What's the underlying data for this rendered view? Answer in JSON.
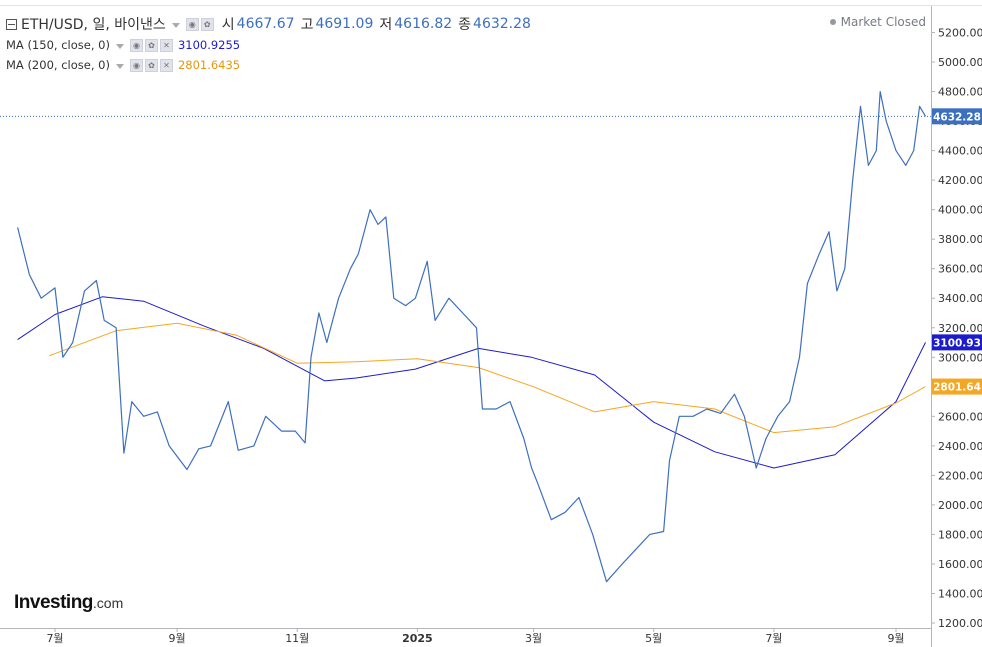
{
  "header": {
    "symbol": "ETH/USD, 일, 바이낸스",
    "open_label": "시",
    "open": "4667.67",
    "high_label": "고",
    "high": "4691.09",
    "low_label": "저",
    "low": "4616.82",
    "close_label": "종",
    "close": "4632.28",
    "status": "Market Closed"
  },
  "indicators": [
    {
      "label": "MA (150, close, 0)",
      "value": "3100.9255",
      "color": "#1c1ccc"
    },
    {
      "label": "MA (200, close, 0)",
      "value": "2801.6435",
      "color": "#f5a623"
    }
  ],
  "logo": {
    "bold": "Investing",
    "suffix": ".com"
  },
  "chart_data": {
    "type": "line",
    "price_color": "#3d6fbf",
    "ylim": [
      1200,
      5400
    ],
    "y_ticks": [
      "5200.00",
      "5000.00",
      "4800.00",
      "4600.00",
      "4400.00",
      "4200.00",
      "4000.00",
      "3800.00",
      "3600.00",
      "3400.00",
      "3200.00",
      "3000.00",
      "2800.00",
      "2600.00",
      "2400.00",
      "2200.00",
      "2000.00",
      "1800.00",
      "1600.00",
      "1400.00",
      "1200.00"
    ],
    "x_ticks": [
      {
        "label": "7월",
        "date": "2024-07-01"
      },
      {
        "label": "9월",
        "date": "2024-09-01"
      },
      {
        "label": "11월",
        "date": "2024-11-01"
      },
      {
        "label": "2025",
        "date": "2025-01-01"
      },
      {
        "label": "3월",
        "date": "2025-03-01"
      },
      {
        "label": "5월",
        "date": "2025-05-01"
      },
      {
        "label": "7월",
        "date": "2025-07-01"
      },
      {
        "label": "9월",
        "date": "2025-09-01"
      }
    ],
    "price_labels": [
      {
        "text": "4632.28",
        "value": 4632.28,
        "color": "#3d6fbf"
      },
      {
        "text": "3100.93",
        "value": 3100.93,
        "color": "#1c1ccc"
      },
      {
        "text": "2801.64",
        "value": 2801.64,
        "color": "#f5a623"
      }
    ],
    "series": [
      {
        "name": "ETH/USD",
        "points": [
          [
            "2024-06-12",
            3880
          ],
          [
            "2024-06-18",
            3560
          ],
          [
            "2024-06-24",
            3400
          ],
          [
            "2024-07-01",
            3470
          ],
          [
            "2024-07-05",
            3000
          ],
          [
            "2024-07-10",
            3100
          ],
          [
            "2024-07-16",
            3450
          ],
          [
            "2024-07-22",
            3520
          ],
          [
            "2024-07-26",
            3250
          ],
          [
            "2024-08-01",
            3200
          ],
          [
            "2024-08-05",
            2350
          ],
          [
            "2024-08-09",
            2700
          ],
          [
            "2024-08-15",
            2600
          ],
          [
            "2024-08-22",
            2630
          ],
          [
            "2024-08-28",
            2400
          ],
          [
            "2024-09-06",
            2240
          ],
          [
            "2024-09-12",
            2380
          ],
          [
            "2024-09-18",
            2400
          ],
          [
            "2024-09-27",
            2700
          ],
          [
            "2024-10-02",
            2370
          ],
          [
            "2024-10-10",
            2400
          ],
          [
            "2024-10-16",
            2600
          ],
          [
            "2024-10-24",
            2500
          ],
          [
            "2024-10-31",
            2500
          ],
          [
            "2024-11-05",
            2420
          ],
          [
            "2024-11-08",
            3000
          ],
          [
            "2024-11-12",
            3300
          ],
          [
            "2024-11-16",
            3100
          ],
          [
            "2024-11-22",
            3400
          ],
          [
            "2024-11-28",
            3600
          ],
          [
            "2024-12-02",
            3700
          ],
          [
            "2024-12-08",
            4000
          ],
          [
            "2024-12-12",
            3900
          ],
          [
            "2024-12-16",
            3950
          ],
          [
            "2024-12-20",
            3400
          ],
          [
            "2024-12-26",
            3350
          ],
          [
            "2024-12-31",
            3400
          ],
          [
            "2025-01-06",
            3650
          ],
          [
            "2025-01-10",
            3250
          ],
          [
            "2025-01-17",
            3400
          ],
          [
            "2025-01-24",
            3300
          ],
          [
            "2025-01-31",
            3200
          ],
          [
            "2025-02-03",
            2650
          ],
          [
            "2025-02-10",
            2650
          ],
          [
            "2025-02-17",
            2700
          ],
          [
            "2025-02-24",
            2450
          ],
          [
            "2025-02-28",
            2250
          ],
          [
            "2025-03-03",
            2150
          ],
          [
            "2025-03-10",
            1900
          ],
          [
            "2025-03-17",
            1950
          ],
          [
            "2025-03-24",
            2050
          ],
          [
            "2025-03-31",
            1800
          ],
          [
            "2025-04-07",
            1480
          ],
          [
            "2025-04-15",
            1600
          ],
          [
            "2025-04-22",
            1700
          ],
          [
            "2025-04-29",
            1800
          ],
          [
            "2025-05-06",
            1820
          ],
          [
            "2025-05-09",
            2300
          ],
          [
            "2025-05-14",
            2600
          ],
          [
            "2025-05-21",
            2600
          ],
          [
            "2025-05-28",
            2650
          ],
          [
            "2025-06-04",
            2620
          ],
          [
            "2025-06-11",
            2750
          ],
          [
            "2025-06-16",
            2600
          ],
          [
            "2025-06-22",
            2250
          ],
          [
            "2025-06-27",
            2450
          ],
          [
            "2025-07-03",
            2600
          ],
          [
            "2025-07-09",
            2700
          ],
          [
            "2025-07-14",
            3000
          ],
          [
            "2025-07-18",
            3500
          ],
          [
            "2025-07-24",
            3700
          ],
          [
            "2025-07-29",
            3850
          ],
          [
            "2025-08-02",
            3450
          ],
          [
            "2025-08-06",
            3600
          ],
          [
            "2025-08-10",
            4200
          ],
          [
            "2025-08-14",
            4700
          ],
          [
            "2025-08-18",
            4300
          ],
          [
            "2025-08-22",
            4400
          ],
          [
            "2025-08-24",
            4800
          ],
          [
            "2025-08-27",
            4600
          ],
          [
            "2025-09-01",
            4400
          ],
          [
            "2025-09-06",
            4300
          ],
          [
            "2025-09-10",
            4400
          ],
          [
            "2025-09-13",
            4700
          ],
          [
            "2025-09-16",
            4632.28
          ]
        ]
      },
      {
        "name": "MA (150, close, 0)",
        "points": [
          [
            "2024-06-12",
            3120
          ],
          [
            "2024-07-01",
            3290
          ],
          [
            "2024-07-25",
            3410
          ],
          [
            "2024-08-15",
            3380
          ],
          [
            "2024-09-15",
            3210
          ],
          [
            "2024-10-15",
            3060
          ],
          [
            "2024-11-15",
            2840
          ],
          [
            "2024-12-01",
            2860
          ],
          [
            "2024-12-31",
            2920
          ],
          [
            "2025-02-01",
            3060
          ],
          [
            "2025-02-28",
            3000
          ],
          [
            "2025-04-01",
            2880
          ],
          [
            "2025-05-01",
            2560
          ],
          [
            "2025-06-01",
            2360
          ],
          [
            "2025-07-01",
            2250
          ],
          [
            "2025-08-01",
            2340
          ],
          [
            "2025-09-01",
            2700
          ],
          [
            "2025-09-16",
            3100.93
          ]
        ]
      },
      {
        "name": "MA (200, close, 0)",
        "points": [
          [
            "2024-06-28",
            3010
          ],
          [
            "2024-08-01",
            3180
          ],
          [
            "2024-09-01",
            3230
          ],
          [
            "2024-10-01",
            3150
          ],
          [
            "2024-11-01",
            2960
          ],
          [
            "2024-12-01",
            2970
          ],
          [
            "2025-01-01",
            2990
          ],
          [
            "2025-02-01",
            2930
          ],
          [
            "2025-03-01",
            2800
          ],
          [
            "2025-04-01",
            2630
          ],
          [
            "2025-05-01",
            2700
          ],
          [
            "2025-06-01",
            2650
          ],
          [
            "2025-07-01",
            2490
          ],
          [
            "2025-08-01",
            2530
          ],
          [
            "2025-09-01",
            2690
          ],
          [
            "2025-09-16",
            2801.64
          ]
        ]
      }
    ]
  }
}
